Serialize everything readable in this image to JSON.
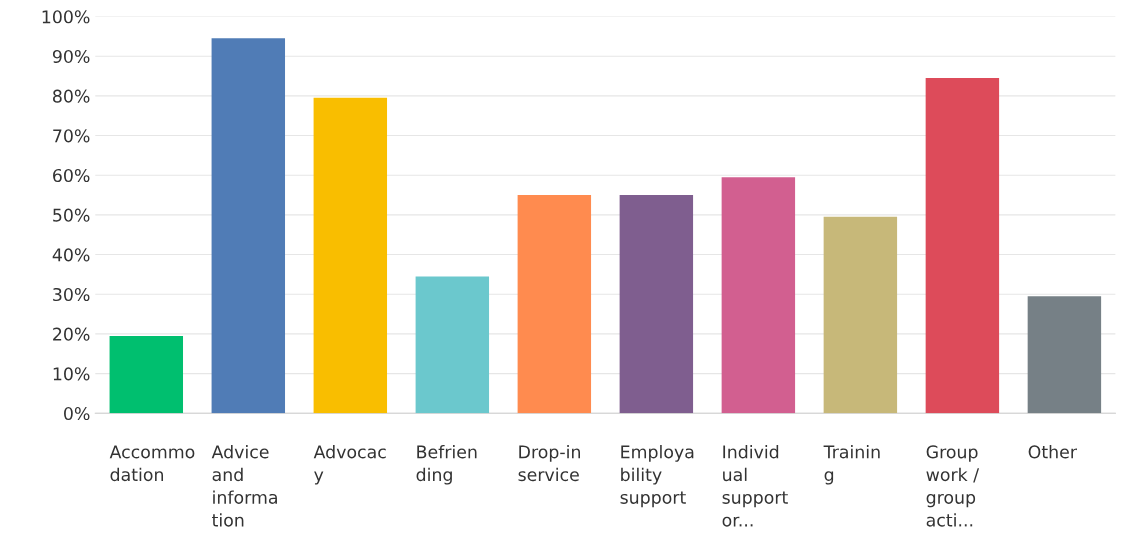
{
  "chart_data": {
    "type": "bar",
    "categories": [
      "Accommo\ndation",
      "Advice\nand\ninforma\ntion",
      "Advocac\ny",
      "Befrien\nding",
      "Drop-in\nservice",
      "Employa\nbility\nsupport",
      "Individ\nual\nsupport\nor...",
      "Trainin\ng",
      "Group\nwork /\ngroup\nacti...",
      "Other"
    ],
    "values": [
      19.5,
      94.5,
      79.5,
      34.5,
      55,
      55,
      59.5,
      49.5,
      84.5,
      29.5
    ],
    "colors": [
      "#00bf6f",
      "#507cb6",
      "#f9be00",
      "#6bc8cd",
      "#ff8b4f",
      "#7f5e8f",
      "#d25f90",
      "#c7b879",
      "#dd4b5a",
      "#768086"
    ],
    "ylim": [
      0,
      100
    ],
    "yticks": [
      {
        "value": 0,
        "label": "0%"
      },
      {
        "value": 10,
        "label": "10%"
      },
      {
        "value": 20,
        "label": "20%"
      },
      {
        "value": 30,
        "label": "30%"
      },
      {
        "value": 40,
        "label": "40%"
      },
      {
        "value": 50,
        "label": "50%"
      },
      {
        "value": 60,
        "label": "60%"
      },
      {
        "value": 70,
        "label": "70%"
      },
      {
        "value": 80,
        "label": "80%"
      },
      {
        "value": 90,
        "label": "90%"
      },
      {
        "value": 100,
        "label": "100%"
      }
    ],
    "grid": "y"
  }
}
